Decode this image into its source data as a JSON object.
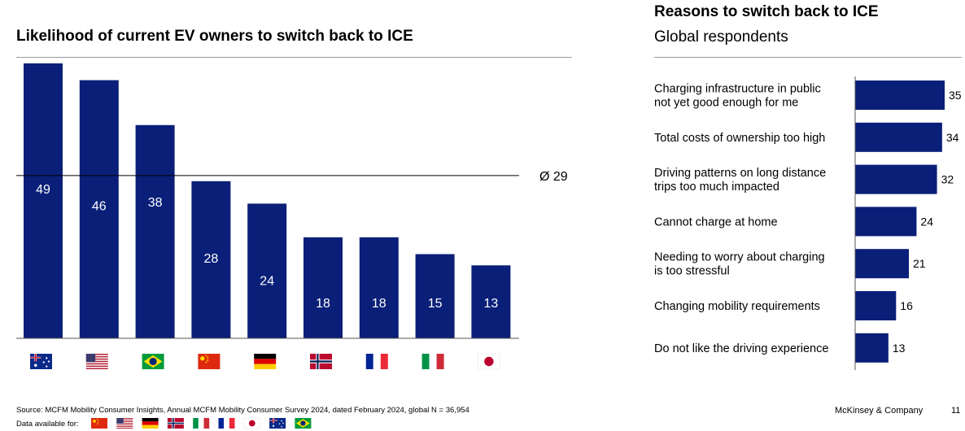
{
  "colors": {
    "bar": "#0a1f78",
    "axis": "#555555",
    "rule": "#9a9a9a",
    "text": "#000000"
  },
  "chart_data": [
    {
      "type": "bar",
      "title": "Likelihood of current EV owners to switch back to ICE",
      "categories": [
        "australia-flag",
        "usa-flag",
        "brazil-flag",
        "china-flag",
        "germany-flag",
        "norway-flag",
        "france-flag",
        "italy-flag",
        "japan-flag"
      ],
      "values": [
        49,
        46,
        38,
        28,
        24,
        18,
        18,
        15,
        13
      ],
      "average": 29,
      "average_label": "Ø 29",
      "ylim": [
        0,
        50
      ]
    },
    {
      "type": "bar",
      "orientation": "horizontal",
      "title": "Reasons to switch back to ICE",
      "subtitle": "Global respondents",
      "categories": [
        [
          "Charging infrastructure in public",
          "not yet good enough for me"
        ],
        [
          "Total costs of ownership too high"
        ],
        [
          "Driving patterns on long distance",
          "trips too much impacted"
        ],
        [
          "Cannot charge at home"
        ],
        [
          "Needing to worry about charging",
          "is too stressful"
        ],
        [
          "Changing mobility requirements"
        ],
        [
          "Do not like the driving experience"
        ]
      ],
      "values": [
        35,
        34,
        32,
        24,
        21,
        16,
        13
      ],
      "xlim": [
        0,
        36
      ]
    }
  ],
  "footer": {
    "source": "Source: MCFM Mobility Consumer Insights, Annual MCFM Mobility Consumer Survey 2024, dated February 2024, global N = 36,954",
    "data_available_label": "Data available for:",
    "data_available_flags": [
      "china-flag",
      "usa-flag",
      "germany-flag",
      "norway-flag",
      "italy-flag",
      "france-flag",
      "japan-flag",
      "australia-flag",
      "brazil-flag"
    ],
    "brand": "McKinsey & Company",
    "page_number": "11"
  }
}
